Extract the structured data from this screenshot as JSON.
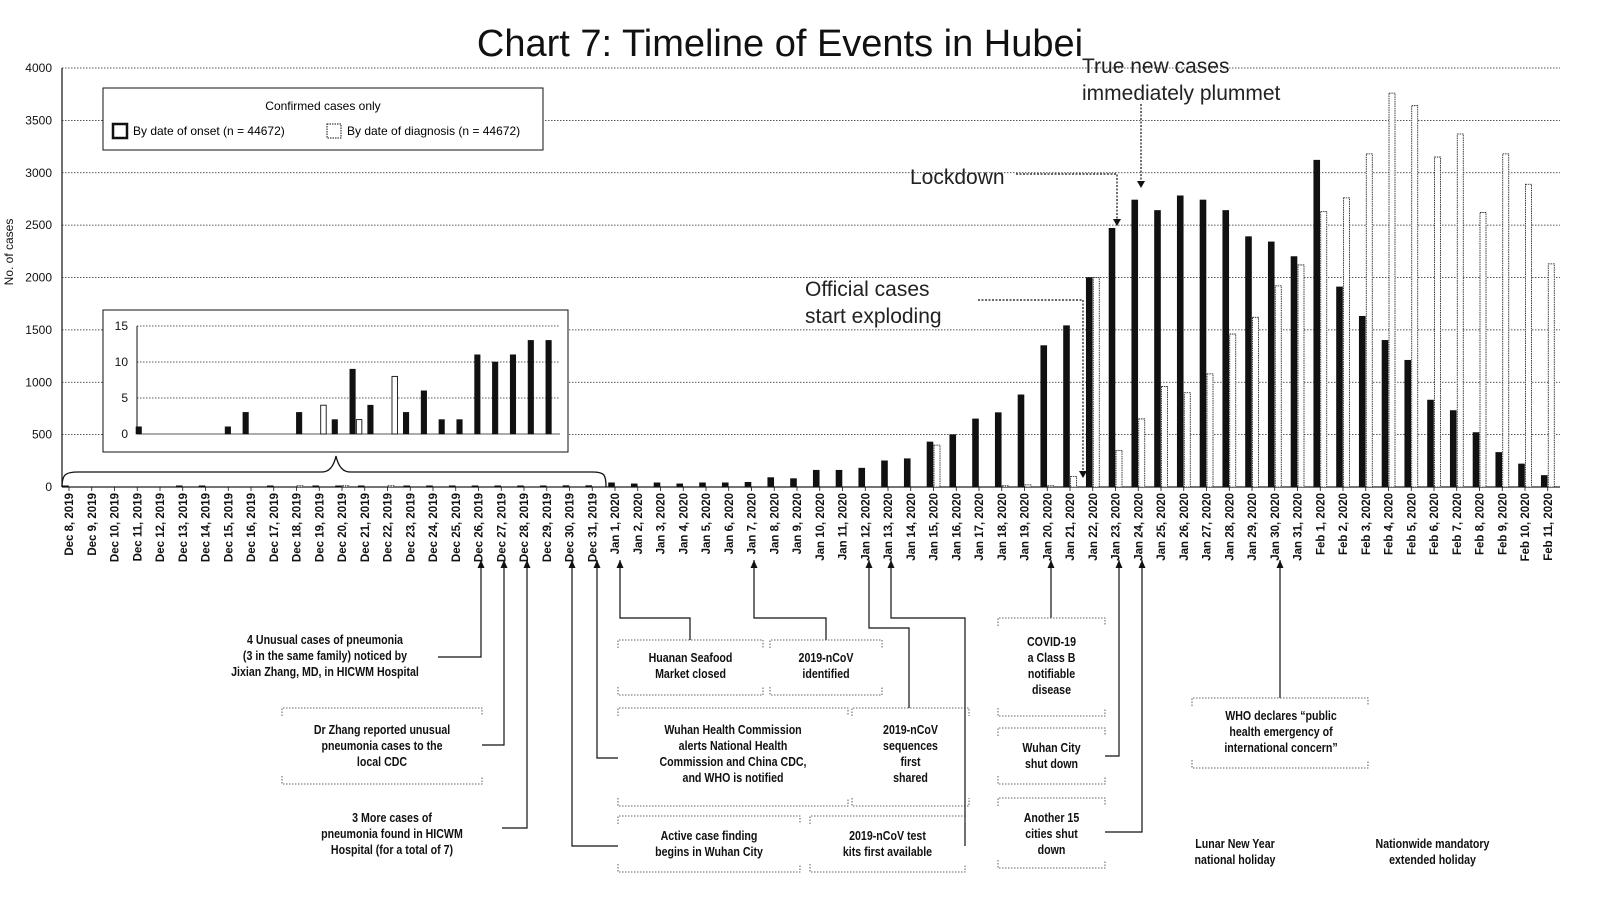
{
  "chart_data": {
    "type": "bar",
    "title": "Chart 7: Timeline of Events in Hubei",
    "ylabel": "No. of cases",
    "ylim": [
      0,
      4000
    ],
    "yticks": [
      0,
      500,
      1000,
      1500,
      2000,
      2500,
      3000,
      3500,
      4000
    ],
    "grid": true,
    "legend": {
      "title": "Confirmed cases only",
      "placement": "top-left",
      "entries": [
        "By date of onset (n = 44672)",
        "By date of diagnosis (n = 44672)"
      ]
    },
    "categories": [
      "Dec 8, 2019",
      "Dec 9, 2019",
      "Dec 10, 2019",
      "Dec 11, 2019",
      "Dec 12, 2019",
      "Dec 13, 2019",
      "Dec 14, 2019",
      "Dec 15, 2019",
      "Dec 16, 2019",
      "Dec 17, 2019",
      "Dec 18, 2019",
      "Dec 19, 2019",
      "Dec 20, 2019",
      "Dec 21, 2019",
      "Dec 22, 2019",
      "Dec 23, 2019",
      "Dec 24, 2019",
      "Dec 25, 2019",
      "Dec 26, 2019",
      "Dec 27, 2019",
      "Dec 28, 2019",
      "Dec 29, 2019",
      "Dec 30, 2019",
      "Dec 31, 2019",
      "Jan 1, 2020",
      "Jan 2, 2020",
      "Jan 3, 2020",
      "Jan 4, 2020",
      "Jan 5, 2020",
      "Jan 6, 2020",
      "Jan 7, 2020",
      "Jan 8, 2020",
      "Jan 9, 2020",
      "Jan 10, 2020",
      "Jan 11, 2020",
      "Jan 12, 2020",
      "Jan 13, 2020",
      "Jan 14, 2020",
      "Jan 15, 2020",
      "Jan 16, 2020",
      "Jan 17, 2020",
      "Jan 18, 2020",
      "Jan 19, 2020",
      "Jan 20, 2020",
      "Jan 21, 2020",
      "Jan 22, 2020",
      "Jan 23, 2020",
      "Jan 24, 2020",
      "Jan 25, 2020",
      "Jan 26, 2020",
      "Jan 27, 2020",
      "Jan 28, 2020",
      "Jan 29, 2020",
      "Jan 30, 2020",
      "Jan 31, 2020",
      "Feb 1, 2020",
      "Feb 2, 2020",
      "Feb 3, 2020",
      "Feb 4, 2020",
      "Feb 5, 2020",
      "Feb 6, 2020",
      "Feb 7, 2020",
      "Feb 8, 2020",
      "Feb 9, 2020",
      "Feb 10, 2020",
      "Feb 11, 2020"
    ],
    "series": [
      {
        "name": "By date of onset (n = 44672)",
        "color": "#111111",
        "values": [
          1,
          0,
          0,
          0,
          0,
          1,
          3,
          0,
          0,
          3,
          0,
          2,
          9,
          4,
          0,
          3,
          6,
          2,
          2,
          11,
          10,
          11,
          13,
          13,
          40,
          30,
          40,
          30,
          40,
          40,
          45,
          90,
          80,
          160,
          160,
          180,
          250,
          270,
          430,
          500,
          650,
          710,
          880,
          1350,
          1540,
          2000,
          2470,
          2740,
          2640,
          2780,
          2740,
          2640,
          2390,
          2340,
          2200,
          3120,
          1910,
          1630,
          1400,
          1210,
          830,
          730,
          520,
          330,
          220,
          110
        ]
      },
      {
        "name": "By date of diagnosis (n = 44672)",
        "color": "#ffffff",
        "values": [
          0,
          0,
          0,
          0,
          0,
          0,
          0,
          0,
          0,
          0,
          4,
          0,
          2,
          0,
          8,
          0,
          0,
          0,
          0,
          0,
          0,
          0,
          0,
          0,
          0,
          0,
          0,
          0,
          0,
          0,
          0,
          0,
          0,
          0,
          0,
          0,
          0,
          0,
          400,
          0,
          0,
          10,
          20,
          10,
          100,
          2000,
          350,
          650,
          960,
          900,
          1080,
          1460,
          1620,
          1920,
          2120,
          2630,
          2760,
          3180,
          3760,
          3640,
          3150,
          3370,
          2620,
          3180,
          2890,
          2130
        ]
      }
    ],
    "inset": {
      "ylim": [
        0,
        15
      ],
      "yticks": [
        0,
        5,
        10,
        15
      ],
      "category_range": [
        "Dec 8, 2019",
        "Dec 31, 2019"
      ]
    },
    "annotations": [
      {
        "text": "Official cases\nstart exploding",
        "category": "Jan 21, 2020"
      },
      {
        "text": "Lockdown",
        "category": "Jan 23, 2020"
      },
      {
        "text": "True new cases\nimmediately plummet",
        "category": "Jan 24, 2020"
      }
    ],
    "events": [
      {
        "text": "4 Unusual cases of pneumonia\n(3 in the same family) noticed by\nJixian Zhang, MD, in HICWM Hospital",
        "category": "Dec 26, 2019"
      },
      {
        "text": "Dr Zhang reported unusual\npneumonia cases to the\nlocal CDC",
        "category": "Dec 27, 2019"
      },
      {
        "text": "3 More cases of\npneumonia found in HICWM\nHospital (for a total of 7)",
        "category": "Dec 28, 2019"
      },
      {
        "text": "Huanan Seafood\nMarket closed",
        "category": "Jan 1, 2020"
      },
      {
        "text": "2019-nCoV\nidentified",
        "category": "Jan 7, 2020"
      },
      {
        "text": "Wuhan Health Commission\nalerts National Health\nCommission and China CDC,\nand WHO is notified",
        "category": "Dec 31, 2019"
      },
      {
        "text": "2019-nCoV\nsequences\nfirst\nshared",
        "category": "Jan 12, 2020"
      },
      {
        "text": "Active case finding\nbegins in Wuhan City",
        "category": "Dec 30, 2019"
      },
      {
        "text": "2019-nCoV test\nkits first available",
        "category": "Jan 13, 2020"
      },
      {
        "text": "COVID-19\na Class B\nnotifiable\ndisease",
        "category": "Jan 20, 2020"
      },
      {
        "text": "Wuhan City\nshut down",
        "category": "Jan 23, 2020"
      },
      {
        "text": "Another 15\ncities shut\ndown",
        "category": "Jan 24, 2020"
      },
      {
        "text": "WHO declares “public\nhealth emergency of\ninternational concern”",
        "category": "Jan 30, 2020"
      },
      {
        "text": "Lunar New Year\nnational holiday",
        "category": ""
      },
      {
        "text": "Nationwide mandatory\nextended holiday",
        "category": ""
      }
    ]
  }
}
